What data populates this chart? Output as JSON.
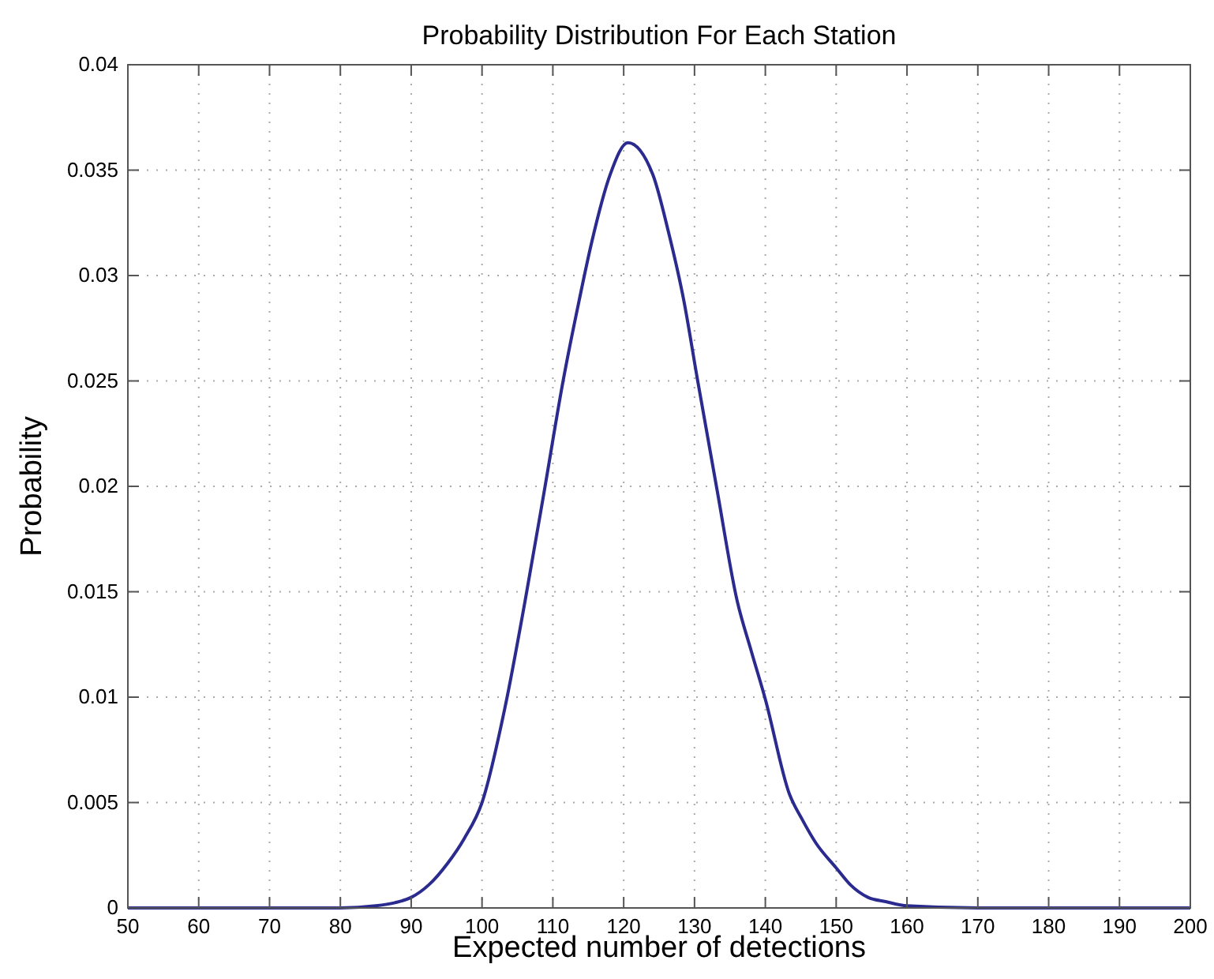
{
  "chart_data": {
    "type": "line",
    "title": "Probability Distribution For Each Station",
    "xlabel": "Expected number of detections",
    "ylabel": "Probability",
    "x": [
      50,
      60,
      70,
      80,
      85,
      87.7,
      90,
      92.5,
      95.1,
      97.5,
      100,
      103.3,
      106.1,
      108.8,
      111.5,
      113.7,
      115.5,
      118.1,
      120.6,
      124.1,
      126.3,
      128.5,
      130.4,
      133.2,
      136,
      138,
      140,
      143.4,
      145.2,
      147.1,
      150,
      152,
      154.5,
      157,
      160,
      170,
      180,
      190,
      200
    ],
    "series": [
      {
        "color": "#2b2b8f",
        "values": [
          0,
          0,
          0,
          0,
          0.0001,
          0.00025,
          0.0005,
          0.0011,
          0.0021,
          0.0033,
          0.005,
          0.0096,
          0.0146,
          0.0198,
          0.0251,
          0.0288,
          0.0316,
          0.0348,
          0.0363,
          0.0348,
          0.0321,
          0.0288,
          0.0251,
          0.0198,
          0.0146,
          0.0122,
          0.0099,
          0.0054,
          0.0042,
          0.0031,
          0.0019,
          0.0011,
          0.0005,
          0.0003,
          0.0001,
          0,
          0,
          0,
          0
        ]
      }
    ],
    "xlim": [
      50,
      200
    ],
    "xticks": [
      50,
      60,
      70,
      80,
      90,
      100,
      110,
      120,
      130,
      140,
      150,
      160,
      170,
      180,
      190,
      200
    ],
    "ylim": [
      0,
      0.04
    ],
    "yticks": [
      0,
      0.005,
      0.01,
      0.015,
      0.02,
      0.025,
      0.03,
      0.035,
      0.04
    ],
    "grid": true,
    "line_style": "solid",
    "marker": "none"
  }
}
